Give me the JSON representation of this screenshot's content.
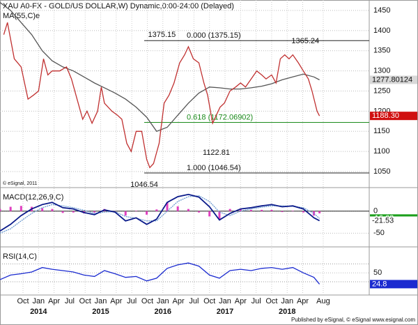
{
  "chart_data": [
    {
      "type": "line",
      "title": "XAU A0-FX - GOLD/US DOLLAR,W) Dynamic,0:00-24:00 (Delayed)",
      "copyright": "© eSignal, 2011",
      "color": "#c03030",
      "x": [
        2013.44,
        2013.5,
        2013.61,
        2013.72,
        2013.83,
        2013.92,
        2014.0,
        2014.08,
        2014.15,
        2014.22,
        2014.34,
        2014.45,
        2014.53,
        2014.62,
        2014.71,
        2014.78,
        2014.86,
        2014.95,
        2015.01,
        2015.06,
        2015.18,
        2015.27,
        2015.34,
        2015.42,
        2015.49,
        2015.57,
        2015.66,
        2015.74,
        2015.79,
        2015.85,
        2015.94,
        2016.02,
        2016.1,
        2016.18,
        2016.27,
        2016.35,
        2016.41,
        2016.49,
        2016.58,
        2016.66,
        2016.72,
        2016.8,
        2016.86,
        2016.92,
        2016.99,
        2017.08,
        2017.17,
        2017.25,
        2017.33,
        2017.42,
        2017.51,
        2017.59,
        2017.66,
        2017.75,
        2017.82,
        2017.89,
        2017.96,
        2018.03,
        2018.09,
        2018.18,
        2018.26,
        2018.34,
        2018.4,
        2018.48,
        2018.52
      ],
      "values": [
        1390,
        1420,
        1330,
        1310,
        1230,
        1240,
        1250,
        1330,
        1290,
        1300,
        1300,
        1310,
        1280,
        1230,
        1180,
        1200,
        1170,
        1200,
        1260,
        1220,
        1200,
        1190,
        1180,
        1120,
        1100,
        1150,
        1150,
        1080,
        1060,
        1070,
        1120,
        1220,
        1240,
        1270,
        1320,
        1340,
        1360,
        1330,
        1320,
        1270,
        1240,
        1170,
        1190,
        1210,
        1220,
        1250,
        1260,
        1270,
        1260,
        1280,
        1300,
        1290,
        1280,
        1290,
        1270,
        1330,
        1340,
        1330,
        1340,
        1320,
        1300,
        1280,
        1250,
        1200,
        1188.3
      ],
      "last_value": {
        "value": 1188.3,
        "label": "1188.30"
      },
      "ma": {
        "name": "MA(55,C)e",
        "color": "#555555",
        "x": [
          2013.38,
          2013.55,
          2013.72,
          2013.89,
          2014.06,
          2014.22,
          2014.39,
          2014.56,
          2014.73,
          2014.9,
          2015.06,
          2015.23,
          2015.4,
          2015.57,
          2015.74,
          2015.9,
          2016.07,
          2016.24,
          2016.41,
          2016.58,
          2016.75,
          2016.91,
          2017.08,
          2017.25,
          2017.42,
          2017.59,
          2017.75,
          2017.92,
          2018.09,
          2018.26,
          2018.43,
          2018.52
        ],
        "values": [
          1470,
          1450,
          1420,
          1390,
          1350,
          1325,
          1310,
          1300,
          1285,
          1270,
          1258,
          1245,
          1230,
          1210,
          1185,
          1150,
          1160,
          1190,
          1220,
          1245,
          1260,
          1258,
          1255,
          1255,
          1258,
          1262,
          1268,
          1278,
          1285,
          1292,
          1285,
          1277.80124
        ],
        "last_value": 1277.80124
      },
      "levels": [
        {
          "value": 1375.15,
          "label": "0.000 (1375.15)"
        },
        {
          "value": 1172.06902,
          "label": "0.618 (1172.06902)",
          "color": "#1a8a1a"
        },
        {
          "value": 1046.54,
          "label": "1.000 (1046.54)"
        }
      ],
      "annotations": [
        {
          "value": 1375.15,
          "x": 2016.41
        },
        {
          "value": 1365.24,
          "x": 2018.09
        },
        {
          "value": 1122.81,
          "x": 2016.86
        },
        {
          "value": 1046.54,
          "x": 2015.79
        }
      ],
      "xlim": [
        2013.38,
        2019.32
      ],
      "xticks": [
        {
          "value": 2013.75,
          "label": "Oct"
        },
        {
          "value": 2014,
          "label": "Jan"
        },
        {
          "value": 2014.25,
          "label": "Apr"
        },
        {
          "value": 2014.5,
          "label": "Jul"
        },
        {
          "value": 2014.75,
          "label": "Oct"
        },
        {
          "value": 2015,
          "label": "Jan"
        },
        {
          "value": 2015.25,
          "label": "Apr"
        },
        {
          "value": 2015.5,
          "label": "Jul"
        },
        {
          "value": 2015.75,
          "label": "Oct"
        },
        {
          "value": 2016,
          "label": "Jan"
        },
        {
          "value": 2016.25,
          "label": "Apr"
        },
        {
          "value": 2016.5,
          "label": "Jul"
        },
        {
          "value": 2016.75,
          "label": "Oct"
        },
        {
          "value": 2017,
          "label": "Jan"
        },
        {
          "value": 2017.25,
          "label": "Apr"
        },
        {
          "value": 2017.5,
          "label": "Jul"
        },
        {
          "value": 2017.75,
          "label": "Oct"
        },
        {
          "value": 2018,
          "label": "Jan"
        },
        {
          "value": 2018.25,
          "label": "Apr"
        },
        {
          "value": 2018.58,
          "label": "Aug"
        }
      ],
      "year_ticks": [
        2014,
        2015,
        2016,
        2017,
        2018
      ],
      "ylim": [
        1012,
        1476
      ],
      "yticks": [
        1050,
        1100,
        1150,
        1200,
        1250,
        1300,
        1350,
        1400,
        1450
      ],
      "grid": true
    },
    {
      "type": "macd",
      "title": "MACD(12,26,9,C)",
      "x": [
        2013.38,
        2013.55,
        2013.72,
        2013.89,
        2014.06,
        2014.22,
        2014.39,
        2014.56,
        2014.73,
        2014.9,
        2015.06,
        2015.23,
        2015.4,
        2015.57,
        2015.74,
        2015.9,
        2016.07,
        2016.24,
        2016.41,
        2016.58,
        2016.75,
        2016.91,
        2017.08,
        2017.25,
        2017.42,
        2017.59,
        2017.75,
        2017.92,
        2018.09,
        2018.26,
        2018.43,
        2018.52
      ],
      "macd": {
        "color": "#0a1a8a",
        "values": [
          -45,
          -30,
          -10,
          5,
          15,
          20,
          8,
          5,
          -3,
          -8,
          3,
          -2,
          -22,
          -15,
          -30,
          -18,
          20,
          33,
          38,
          32,
          10,
          -20,
          -5,
          5,
          8,
          12,
          15,
          10,
          12,
          5,
          -15,
          -21.53
        ],
        "last_value": -21.53
      },
      "signal": {
        "color": "#6a9ad0",
        "values": [
          -50,
          -40,
          -22,
          -5,
          8,
          15,
          12,
          8,
          2,
          -5,
          -2,
          -1,
          -12,
          -16,
          -22,
          -22,
          0,
          22,
          33,
          35,
          22,
          -2,
          -10,
          0,
          5,
          9,
          12,
          12,
          11,
          8,
          -5,
          -16.63
        ],
        "last_value": -16.63,
        "box_color": "#1ea01e"
      },
      "histogram": {
        "color": "#e040c0",
        "values": [
          5,
          10,
          12,
          10,
          7,
          5,
          -4,
          -3,
          -5,
          -3,
          5,
          -1,
          -10,
          1,
          -8,
          4,
          20,
          11,
          5,
          -3,
          -12,
          -18,
          5,
          5,
          3,
          3,
          3,
          -2,
          1,
          -3,
          -10,
          -4.9
        ]
      },
      "ylim": [
        -78,
        52
      ],
      "yticks": [
        -50,
        0
      ],
      "grid": true
    },
    {
      "type": "rsi",
      "title": "RSI(14,C)",
      "color": "#1a2ad0",
      "x": [
        2013.38,
        2013.55,
        2013.72,
        2013.89,
        2014.06,
        2014.22,
        2014.39,
        2014.56,
        2014.73,
        2014.9,
        2015.06,
        2015.23,
        2015.4,
        2015.57,
        2015.74,
        2015.9,
        2016.07,
        2016.24,
        2016.41,
        2016.58,
        2016.75,
        2016.91,
        2017.08,
        2017.25,
        2017.42,
        2017.59,
        2017.75,
        2017.92,
        2018.09,
        2018.26,
        2018.43,
        2018.52
      ],
      "values": [
        35,
        45,
        48,
        52,
        62,
        58,
        55,
        52,
        45,
        42,
        55,
        48,
        40,
        42,
        32,
        38,
        60,
        68,
        72,
        65,
        45,
        38,
        55,
        58,
        55,
        60,
        62,
        58,
        62,
        50,
        40,
        24.8
      ],
      "last_value": 24.8,
      "levels": [
        30,
        70
      ],
      "ylim": [
        2,
        105
      ],
      "yticks": [
        50
      ],
      "grid": true
    }
  ],
  "footer": "Published by eSignal, © eSignal www.esignal.com"
}
